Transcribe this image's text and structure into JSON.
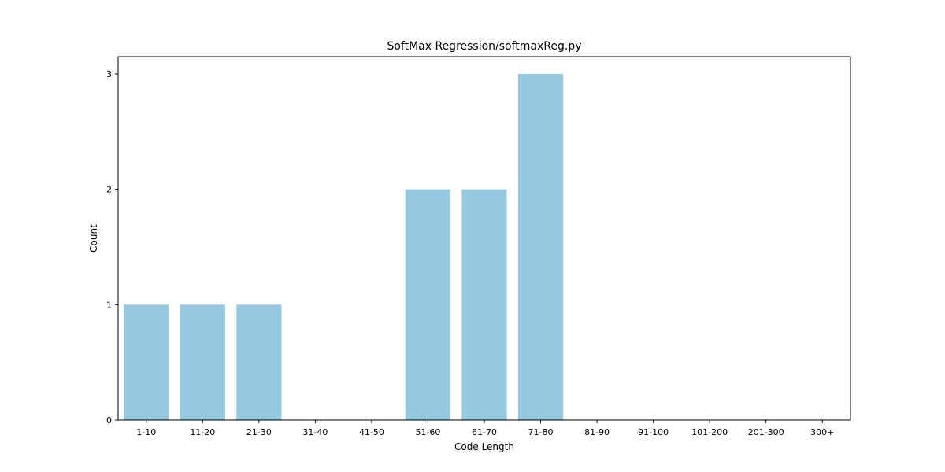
{
  "chart_data": {
    "type": "bar",
    "title": "SoftMax Regression/softmaxReg.py",
    "xlabel": "Code Length",
    "ylabel": "Count",
    "categories": [
      "1-10",
      "11-20",
      "21-30",
      "31-40",
      "41-50",
      "51-60",
      "61-70",
      "71-80",
      "81-90",
      "91-100",
      "101-200",
      "201-300",
      "300+"
    ],
    "values": [
      1,
      1,
      1,
      0,
      0,
      2,
      2,
      3,
      0,
      0,
      0,
      0,
      0
    ],
    "ylim": [
      0,
      3.15
    ],
    "yticks": [
      0,
      1,
      2,
      3
    ],
    "bar_color": "#95c9df",
    "grid": false,
    "legend": "none"
  }
}
